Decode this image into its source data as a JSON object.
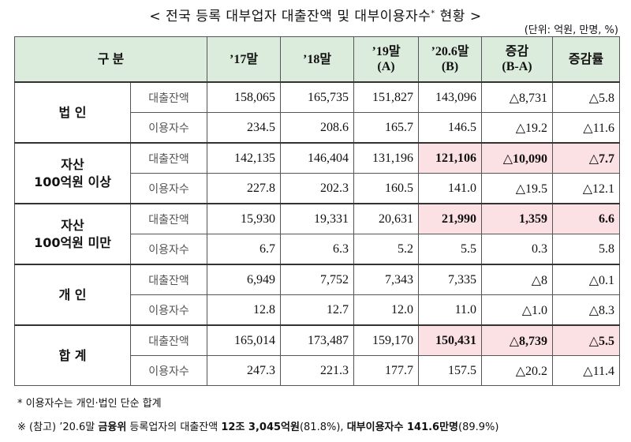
{
  "title": {
    "before": "< 전국 등록 대부업자 대출잔액 및 대부이용자수",
    "mark": "*",
    "after": " 현황 >"
  },
  "unit": "(단위: 억원, 만명, %)",
  "table": {
    "header": [
      [
        "구   분"
      ],
      [
        "’17말"
      ],
      [
        "’18말"
      ],
      [
        "’19말",
        "(A)"
      ],
      [
        "’20.6말",
        "(B)"
      ],
      [
        "증감",
        "(B-A)"
      ],
      [
        "증감률"
      ]
    ],
    "highlight_columns": [
      3,
      4,
      5
    ],
    "groups": [
      {
        "label": [
          "법 인"
        ],
        "rows": [
          {
            "item": "대출잔액",
            "values": [
              "158,065",
              "165,735",
              "151,827",
              "143,096",
              "△8,731",
              "△5.8"
            ],
            "highlight": false
          },
          {
            "item": "이용자수",
            "values": [
              "234.5",
              "208.6",
              "165.7",
              "146.5",
              "△19.2",
              "△11.6"
            ],
            "highlight": false
          }
        ]
      },
      {
        "label": [
          "자산",
          "100억원 이상"
        ],
        "rows": [
          {
            "item": "대출잔액",
            "values": [
              "142,135",
              "146,404",
              "131,196",
              "121,106",
              "△10,090",
              "△7.7"
            ],
            "highlight": true
          },
          {
            "item": "이용자수",
            "values": [
              "227.8",
              "202.3",
              "160.5",
              "141.0",
              "△19.5",
              "△12.1"
            ],
            "highlight": false
          }
        ]
      },
      {
        "label": [
          "자산",
          "100억원 미만"
        ],
        "rows": [
          {
            "item": "대출잔액",
            "values": [
              "15,930",
              "19,331",
              "20,631",
              "21,990",
              "1,359",
              "6.6"
            ],
            "highlight": true
          },
          {
            "item": "이용자수",
            "values": [
              "6.7",
              "6.3",
              "5.2",
              "5.5",
              "0.3",
              "5.8"
            ],
            "highlight": false
          }
        ]
      },
      {
        "label": [
          "개 인"
        ],
        "rows": [
          {
            "item": "대출잔액",
            "values": [
              "6,949",
              "7,752",
              "7,343",
              "7,335",
              "△8",
              "△0.1"
            ],
            "highlight": false
          },
          {
            "item": "이용자수",
            "values": [
              "12.8",
              "12.7",
              "12.0",
              "11.0",
              "△1.0",
              "△8.3"
            ],
            "highlight": false
          }
        ]
      },
      {
        "label": [
          "합 계"
        ],
        "rows": [
          {
            "item": "대출잔액",
            "values": [
              "165,014",
              "173,487",
              "159,170",
              "150,431",
              "△8,739",
              "△5.5"
            ],
            "highlight": true
          },
          {
            "item": "이용자수",
            "values": [
              "247.3",
              "221.3",
              "177.7",
              "157.5",
              "△20.2",
              "△11.4"
            ],
            "highlight": false
          }
        ]
      }
    ]
  },
  "notes": [
    [
      {
        "text": "* 이용자수는 개인·법인 단순 합계",
        "bold": false
      }
    ],
    [
      {
        "text": "※ (참고) ’20.6말 ",
        "bold": false
      },
      {
        "text": "금융위",
        "bold": true
      },
      {
        "text": " 등록업자의 대출잔액 ",
        "bold": false
      },
      {
        "text": "12조 3,045억원",
        "bold": true
      },
      {
        "text": "(81.8%), ",
        "bold": false
      },
      {
        "text": "대부이용자수 141.6만명",
        "bold": true
      },
      {
        "text": "(89.9%)",
        "bold": false
      }
    ]
  ]
}
